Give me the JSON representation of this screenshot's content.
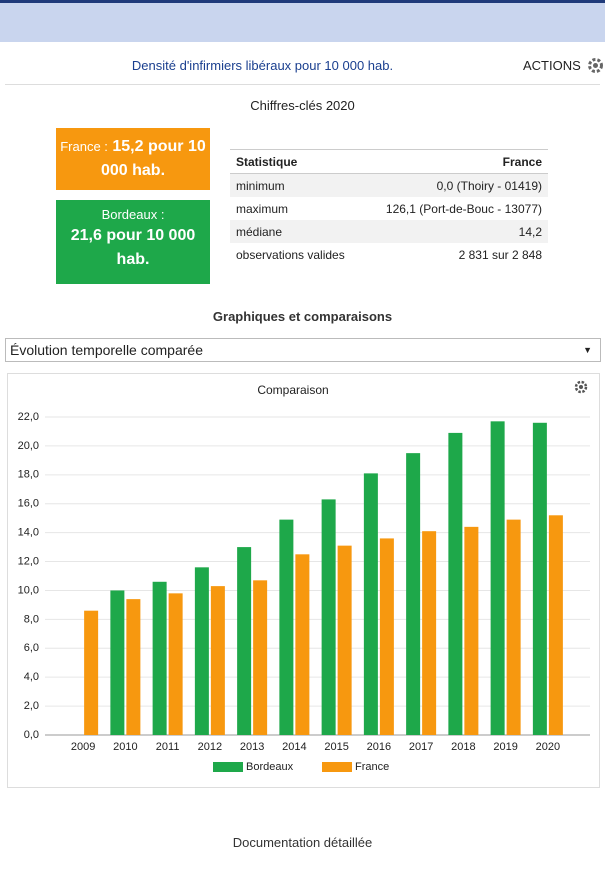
{
  "header": {
    "title": "Densité d'infirmiers libéraux pour 10 000 hab.",
    "actions": "ACTIONS"
  },
  "key_figures": {
    "title": "Chiffres-clés 2020",
    "cards": [
      {
        "label": "France :",
        "value": "15,2 pour 10 000 hab."
      },
      {
        "label": "Bordeaux :",
        "value": "21,6 pour 10 000 hab."
      }
    ]
  },
  "table": {
    "headers": [
      "Statistique",
      "France"
    ],
    "rows": [
      [
        "minimum",
        "0,0 (Thoiry - 01419)"
      ],
      [
        "maximum",
        "126,1 (Port-de-Bouc - 13077)"
      ],
      [
        "médiane",
        "14,2"
      ],
      [
        "observations valides",
        "2 831 sur 2 848"
      ]
    ]
  },
  "section_title": "Graphiques et comparaisons",
  "select": "Évolution temporelle comparée",
  "footer": "Documentation détaillée",
  "chart_data": {
    "type": "bar",
    "title": "Comparaison",
    "categories": [
      "2009",
      "2010",
      "2011",
      "2012",
      "2013",
      "2014",
      "2015",
      "2016",
      "2017",
      "2018",
      "2019",
      "2020"
    ],
    "series": [
      {
        "name": "Bordeaux",
        "color": "#1ea84a",
        "values": [
          null,
          10.0,
          10.6,
          11.6,
          13.0,
          14.9,
          16.3,
          18.1,
          19.5,
          20.9,
          21.7,
          21.6
        ]
      },
      {
        "name": "France",
        "color": "#f7980f",
        "values": [
          8.6,
          9.4,
          9.8,
          10.3,
          10.7,
          12.5,
          13.1,
          13.6,
          14.1,
          14.4,
          14.9,
          15.2
        ]
      }
    ],
    "ylim": [
      0,
      22
    ],
    "yticks": [
      {
        "value": 0,
        "label": "0,0"
      },
      {
        "value": 2,
        "label": "2,0"
      },
      {
        "value": 4,
        "label": "4,0"
      },
      {
        "value": 6,
        "label": "6,0"
      },
      {
        "value": 8,
        "label": "8,0"
      },
      {
        "value": 10,
        "label": "10,0"
      },
      {
        "value": 12,
        "label": "12,0"
      },
      {
        "value": 14,
        "label": "14,0"
      },
      {
        "value": 16,
        "label": "16,0"
      },
      {
        "value": 18,
        "label": "18,0"
      },
      {
        "value": 20,
        "label": "20,0"
      },
      {
        "value": 22,
        "label": "22,0"
      }
    ],
    "grid": true
  }
}
